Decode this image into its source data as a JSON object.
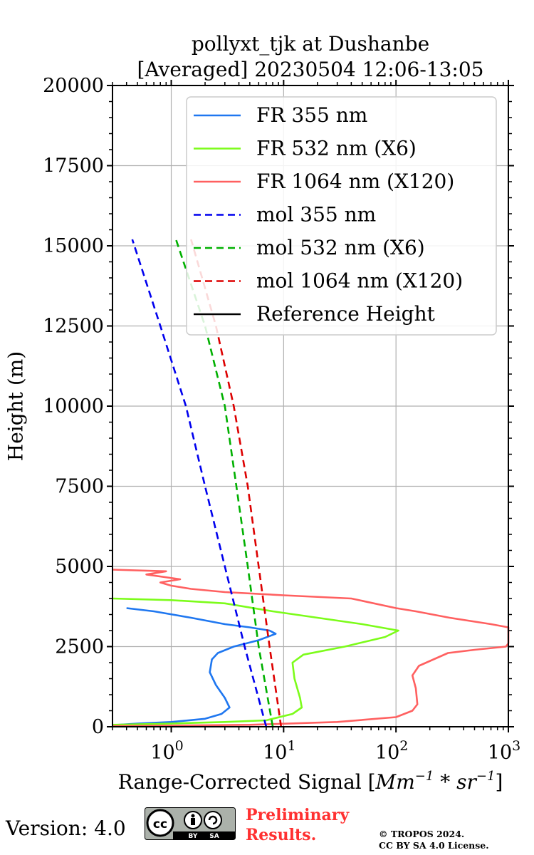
{
  "chart_data": {
    "type": "line",
    "title_line1": "pollyxt_tjk at Dushanbe",
    "title_line2": "[Averaged] 20230504 12:06-13:05",
    "xlabel_main": "Range-Corrected Signal [",
    "xlabel_units": "Mm",
    "xlabel_sup1": "−1",
    "xlabel_mid": " * sr",
    "xlabel_sup2": "−1",
    "xlabel_end": "]",
    "ylabel": "Height (m)",
    "xscale": "log",
    "xlim": [
      0.3,
      1000
    ],
    "ylim": [
      0,
      20000
    ],
    "grid": true,
    "legend_position": "upper-right",
    "x_ticks": [
      {
        "base": "10",
        "exp": "0",
        "value": 1
      },
      {
        "base": "10",
        "exp": "1",
        "value": 10
      },
      {
        "base": "10",
        "exp": "2",
        "value": 100
      },
      {
        "base": "10",
        "exp": "3",
        "value": 1000
      }
    ],
    "y_ticks": [
      "0",
      "2500",
      "5000",
      "7500",
      "10000",
      "12500",
      "15000",
      "17500",
      "20000"
    ],
    "series": [
      {
        "name": "FR 355 nm",
        "color": "#1f77f0",
        "style": "solid",
        "points": [
          [
            0.3,
            50
          ],
          [
            0.5,
            100
          ],
          [
            1.0,
            150
          ],
          [
            2.0,
            250
          ],
          [
            2.8,
            400
          ],
          [
            3.3,
            600
          ],
          [
            3.0,
            900
          ],
          [
            2.5,
            1300
          ],
          [
            2.2,
            1700
          ],
          [
            2.3,
            2100
          ],
          [
            2.6,
            2300
          ],
          [
            3.6,
            2500
          ],
          [
            6.0,
            2700
          ],
          [
            8.5,
            2900
          ],
          [
            7.5,
            3000
          ],
          [
            5.0,
            3100
          ],
          [
            3.0,
            3200
          ],
          [
            1.5,
            3400
          ],
          [
            0.7,
            3600
          ],
          [
            0.4,
            3700
          ]
        ]
      },
      {
        "name": "FR 532 nm (X6)",
        "color": "#7cfc1a",
        "style": "solid",
        "points": [
          [
            0.3,
            60
          ],
          [
            1.0,
            100
          ],
          [
            3.0,
            150
          ],
          [
            7.0,
            200
          ],
          [
            12.0,
            400
          ],
          [
            14.5,
            600
          ],
          [
            14.0,
            900
          ],
          [
            12.5,
            1500
          ],
          [
            12.0,
            2000
          ],
          [
            15.0,
            2250
          ],
          [
            35.0,
            2500
          ],
          [
            80.0,
            2800
          ],
          [
            105.0,
            3000
          ],
          [
            50.0,
            3200
          ],
          [
            20.0,
            3400
          ],
          [
            8.0,
            3600
          ],
          [
            3.0,
            3850
          ],
          [
            1.0,
            3950
          ],
          [
            0.3,
            4000
          ]
        ]
      },
      {
        "name": "FR 1064 nm (X120)",
        "color": "#ff6060",
        "style": "solid",
        "points": [
          [
            0.3,
            20
          ],
          [
            5,
            60
          ],
          [
            30,
            150
          ],
          [
            100,
            300
          ],
          [
            140,
            500
          ],
          [
            155,
            700
          ],
          [
            150,
            1200
          ],
          [
            140,
            1600
          ],
          [
            160,
            1900
          ],
          [
            250,
            2200
          ],
          [
            290,
            2300
          ],
          [
            500,
            2400
          ],
          [
            950,
            2500
          ],
          [
            1000,
            2600
          ],
          [
            1000,
            3100
          ],
          [
            700,
            3200
          ],
          [
            300,
            3400
          ],
          [
            150,
            3600
          ],
          [
            100,
            3700
          ],
          [
            40,
            4000
          ],
          [
            10,
            4100
          ],
          [
            3,
            4200
          ],
          [
            1.5,
            4300
          ],
          [
            1.0,
            4400
          ],
          [
            0.8,
            4500
          ],
          [
            1.2,
            4600
          ],
          [
            0.6,
            4750
          ],
          [
            0.9,
            4850
          ],
          [
            0.3,
            4900
          ]
        ]
      },
      {
        "name": "mol 355 nm",
        "color": "#0000ee",
        "style": "dashed",
        "points": [
          [
            7.0,
            0
          ],
          [
            4.5,
            2500
          ],
          [
            3.0,
            5000
          ],
          [
            2.0,
            7500
          ],
          [
            1.35,
            10000
          ],
          [
            0.8,
            12500
          ],
          [
            0.45,
            15200
          ]
        ]
      },
      {
        "name": "mol 532 nm (X6)",
        "color": "#00b000",
        "style": "dashed",
        "points": [
          [
            8.0,
            0
          ],
          [
            6.0,
            2500
          ],
          [
            4.8,
            5000
          ],
          [
            3.8,
            7500
          ],
          [
            3.0,
            10000
          ],
          [
            2.0,
            12500
          ],
          [
            1.1,
            15200
          ]
        ]
      },
      {
        "name": "mol 1064 nm (X120)",
        "color": "#dd0000",
        "style": "dashed",
        "points": [
          [
            9.5,
            0
          ],
          [
            7.5,
            2500
          ],
          [
            6.0,
            5000
          ],
          [
            4.8,
            7500
          ],
          [
            3.6,
            10000
          ],
          [
            2.5,
            12500
          ],
          [
            1.5,
            15200
          ]
        ]
      },
      {
        "name": "Reference Height",
        "color": "#000000",
        "style": "solid",
        "points": []
      }
    ]
  },
  "footer": {
    "version": "Version: 4.0",
    "badge_cc": "cc",
    "badge_by": "BY",
    "badge_sa": "SA",
    "preliminary_line1": "Preliminary",
    "preliminary_line2": "Results.",
    "copyright_line1": "© TROPOS 2024.",
    "copyright_line2": "CC BY SA 4.0 License."
  }
}
